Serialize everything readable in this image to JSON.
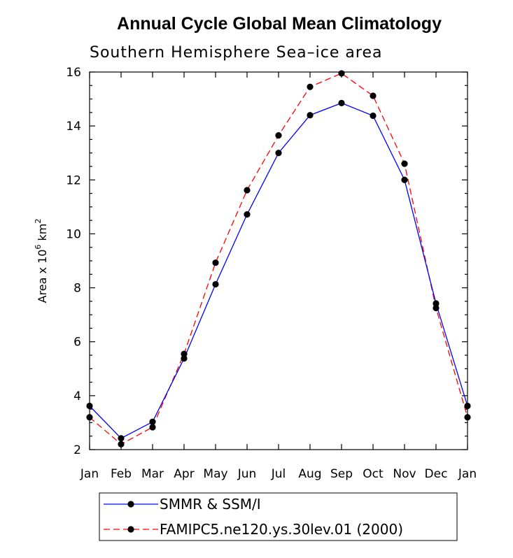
{
  "chart_data": {
    "type": "line",
    "title": "Annual Cycle Global Mean Climatology",
    "subtitle": "Southern Hemisphere Sea–ice area",
    "ylabel": {
      "base": "Area x 10",
      "exp1": "6",
      "mid": " km",
      "exp2": "2"
    },
    "xlabel": "",
    "ylim": [
      2,
      16
    ],
    "yticks": [
      2,
      4,
      6,
      8,
      10,
      12,
      14,
      16
    ],
    "categories": [
      "Jan",
      "Feb",
      "Mar",
      "Apr",
      "May",
      "Jun",
      "Jul",
      "Aug",
      "Sep",
      "Oct",
      "Nov",
      "Dec",
      "Jan"
    ],
    "series": [
      {
        "name": "SMMR & SSM/I",
        "color": "#0000ff",
        "dashed": false,
        "values": [
          3.62,
          2.42,
          3.03,
          5.38,
          8.13,
          10.72,
          13.0,
          14.4,
          14.85,
          14.38,
          12.0,
          7.42,
          3.62
        ]
      },
      {
        "name": "FAMIPC5.ne120.ys.30lev.01 (2000)",
        "color": "#ff0000",
        "dashed": true,
        "values": [
          3.2,
          2.2,
          2.83,
          5.55,
          8.93,
          11.62,
          13.65,
          15.45,
          15.95,
          15.12,
          12.6,
          7.25,
          3.2
        ]
      }
    ]
  }
}
